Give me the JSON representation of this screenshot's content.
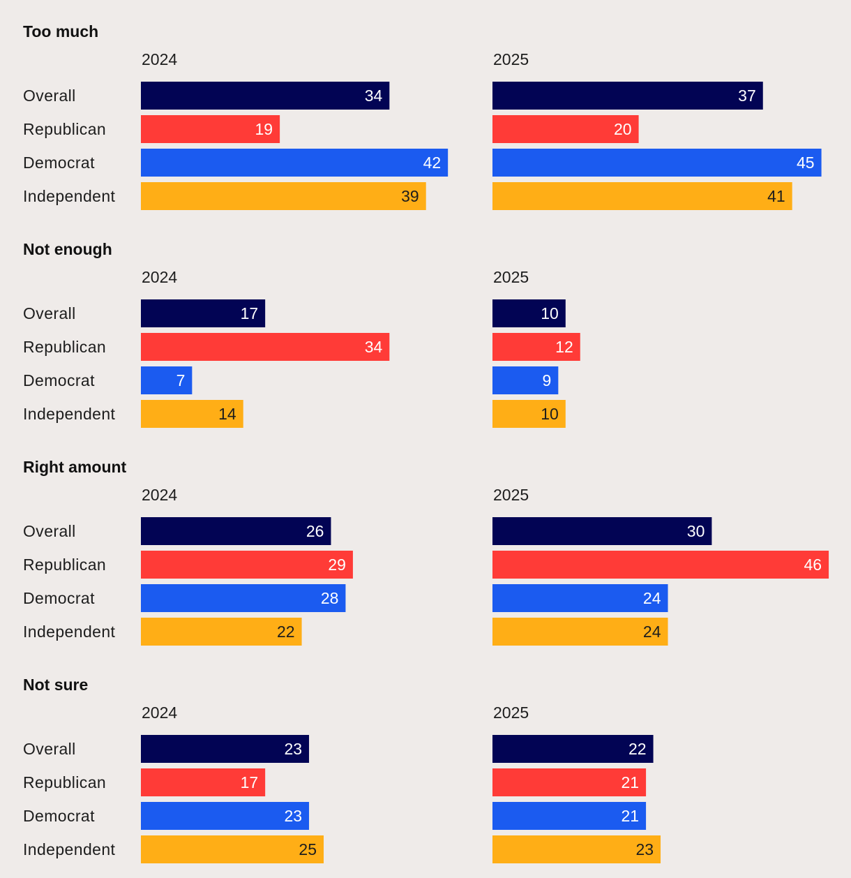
{
  "chart_data": {
    "type": "bar",
    "orientation": "horizontal",
    "unit": "%",
    "xlim": [
      0,
      46
    ],
    "years": [
      "2024",
      "2025"
    ],
    "categories": [
      "Overall",
      "Republican",
      "Democrat",
      "Independent"
    ],
    "colors": {
      "Overall": "#020454",
      "Republican": "#ff3b37",
      "Democrat": "#1b5bf0",
      "Independent": "#ffae16"
    },
    "label_colors": {
      "Overall": "#ffffff",
      "Republican": "#ffffff",
      "Democrat": "#ffffff",
      "Independent": "#1d1d1d"
    },
    "panels": [
      {
        "title": "Too much",
        "values": {
          "2024": [
            34,
            19,
            42,
            39
          ],
          "2025": [
            37,
            20,
            45,
            41
          ]
        }
      },
      {
        "title": "Not enough",
        "values": {
          "2024": [
            17,
            34,
            7,
            14
          ],
          "2025": [
            10,
            12,
            9,
            10
          ]
        }
      },
      {
        "title": "Right amount",
        "values": {
          "2024": [
            26,
            29,
            28,
            22
          ],
          "2025": [
            30,
            46,
            24,
            24
          ]
        }
      },
      {
        "title": "Not sure",
        "values": {
          "2024": [
            23,
            17,
            23,
            25
          ],
          "2025": [
            22,
            21,
            21,
            23
          ]
        }
      }
    ]
  }
}
